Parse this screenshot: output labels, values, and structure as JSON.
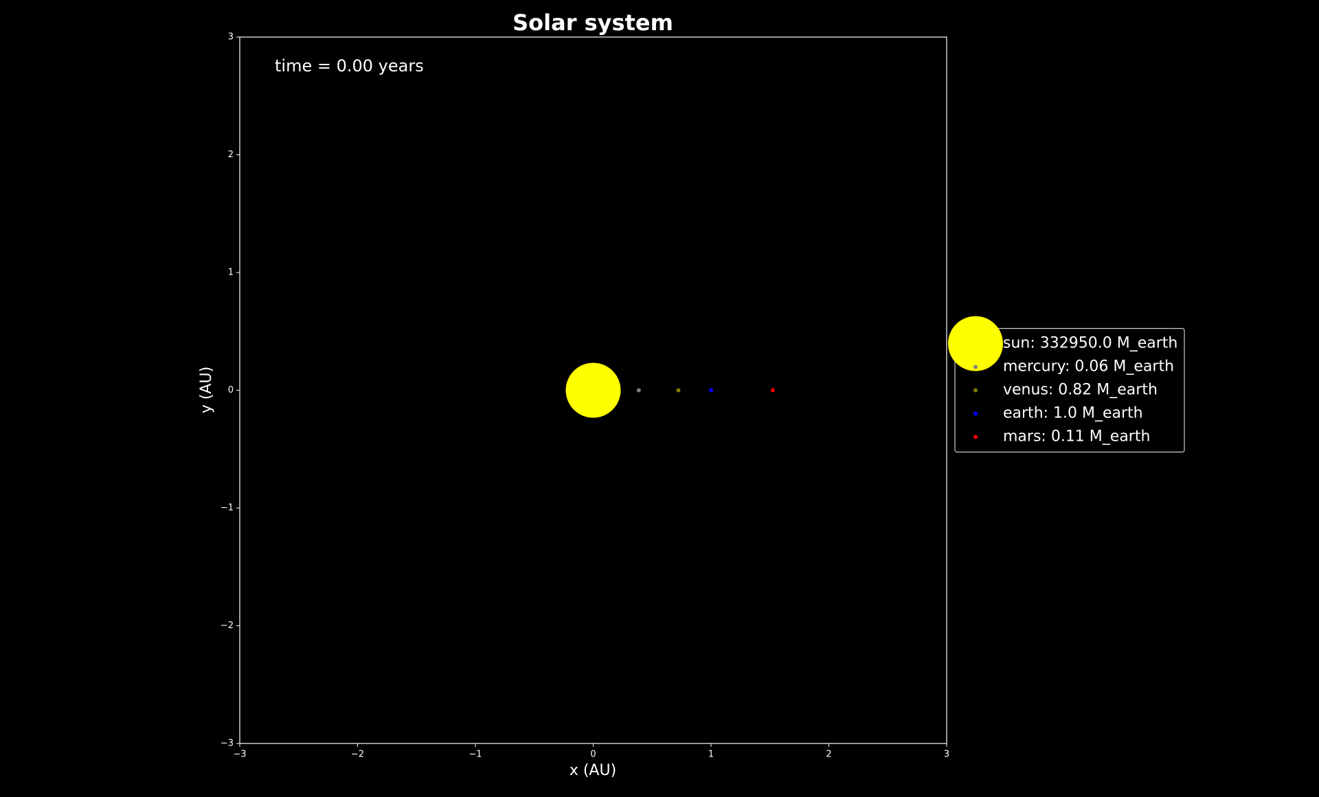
{
  "chart_data": {
    "type": "scatter",
    "title": "Solar system",
    "xlabel": "x (AU)",
    "ylabel": "y (AU)",
    "annotation": "time = 0.00 years",
    "xlim": [
      -3,
      3
    ],
    "ylim": [
      -3,
      3
    ],
    "xticks": [
      {
        "value": -3,
        "label": "−3"
      },
      {
        "value": -2,
        "label": "−2"
      },
      {
        "value": -1,
        "label": "−1"
      },
      0,
      1,
      2,
      3
    ],
    "yticks": [
      {
        "value": -3,
        "label": "−3"
      },
      {
        "value": -2,
        "label": "−2"
      },
      {
        "value": -1,
        "label": "−1"
      },
      0,
      1,
      2,
      3
    ],
    "legend": "center left",
    "series": [
      {
        "name": "sun: 332950.0 M_earth",
        "color": "#ffff00",
        "x": [
          0
        ],
        "values": [
          0
        ],
        "marker_size": 40
      },
      {
        "name": "mercury: 0.06 M_earth",
        "color": "#808080",
        "x": [
          0.387
        ],
        "values": [
          0
        ],
        "marker_size": 3
      },
      {
        "name": "venus: 0.82 M_earth",
        "color": "#808000",
        "x": [
          0.723
        ],
        "values": [
          0
        ],
        "marker_size": 3
      },
      {
        "name": "earth: 1.0 M_earth",
        "color": "#0000ff",
        "x": [
          1.0
        ],
        "values": [
          0
        ],
        "marker_size": 3
      },
      {
        "name": "mars: 0.11 M_earth",
        "color": "#ff0000",
        "x": [
          1.524
        ],
        "values": [
          0
        ],
        "marker_size": 3
      }
    ]
  }
}
